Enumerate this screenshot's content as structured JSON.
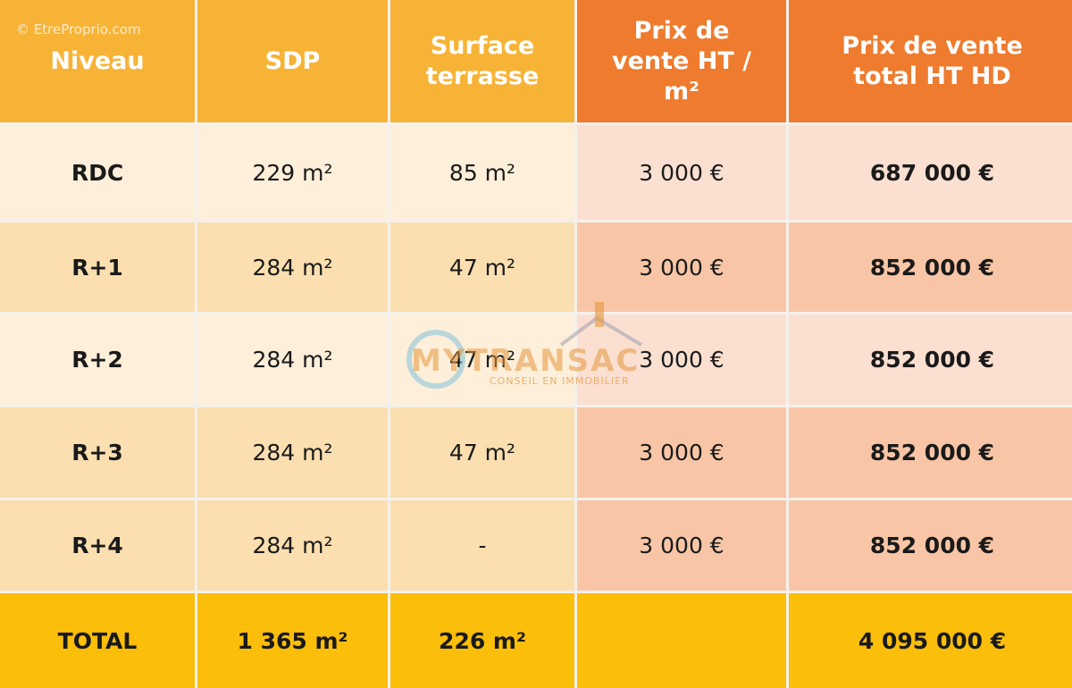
{
  "watermark": "© EtreProprio.com",
  "logo": {
    "name": "MYTRANSAC",
    "tagline": "CONSEIL EN IMMOBILIER"
  },
  "table": {
    "header": [
      "Niveau",
      "SDP",
      "Surface terrasse",
      "Prix de vente HT / m²",
      "Prix de vente total HT HD"
    ],
    "rows": [
      [
        "RDC",
        "229 m²",
        "85 m²",
        "3 000 €",
        "687 000 €"
      ],
      [
        "R+1",
        "284 m²",
        "47 m²",
        "3 000 €",
        "852 000 €"
      ],
      [
        "R+2",
        "284 m²",
        "47 m²",
        "3 000 €",
        "852 000 €"
      ],
      [
        "R+3",
        "284 m²",
        "47 m²",
        "3 000 €",
        "852 000 €"
      ],
      [
        "R+4",
        "284 m²",
        "-",
        "3 000 €",
        "852 000 €"
      ]
    ],
    "total": {
      "label": "TOTAL",
      "sdp": "1 365 m²",
      "terrasse": "226 m²",
      "prix_total": "4 095 000 €"
    }
  }
}
